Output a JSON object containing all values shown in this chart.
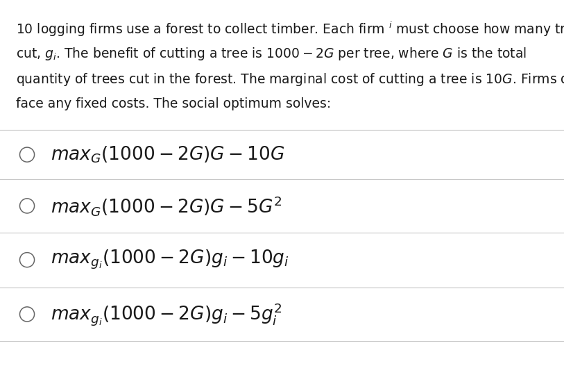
{
  "bg_color": "#ffffff",
  "text_color": "#1a1a1a",
  "para_line1": "10 logging firms use a forest to collect timber. Each firm $^i$ must choose how many trees to",
  "para_line2": "cut, $g_i$. The benefit of cutting a tree is $1000-2G$ per tree, where $G$ is the total",
  "para_line3": "quantity of trees cut in the forest. The marginal cost of cutting a tree is $10G$. Firms do not",
  "para_line4": "face any fixed costs. The social optimum solves:",
  "options": [
    "$\\mathit{max}_G(1000-2G)G-10G$",
    "$\\mathit{max}_G(1000-2G)G-5G^2$",
    "$\\mathit{max}_{g_i}(1000-2G)g_i-10g_i$",
    "$\\mathit{max}_{g_i}(1000-2G)g_i-5g_i^2$"
  ],
  "divider_color": "#c8c8c8",
  "font_size_body": 13.5,
  "font_size_options": 19,
  "circle_color": "#666666",
  "fig_width": 8.13,
  "fig_height": 5.27
}
